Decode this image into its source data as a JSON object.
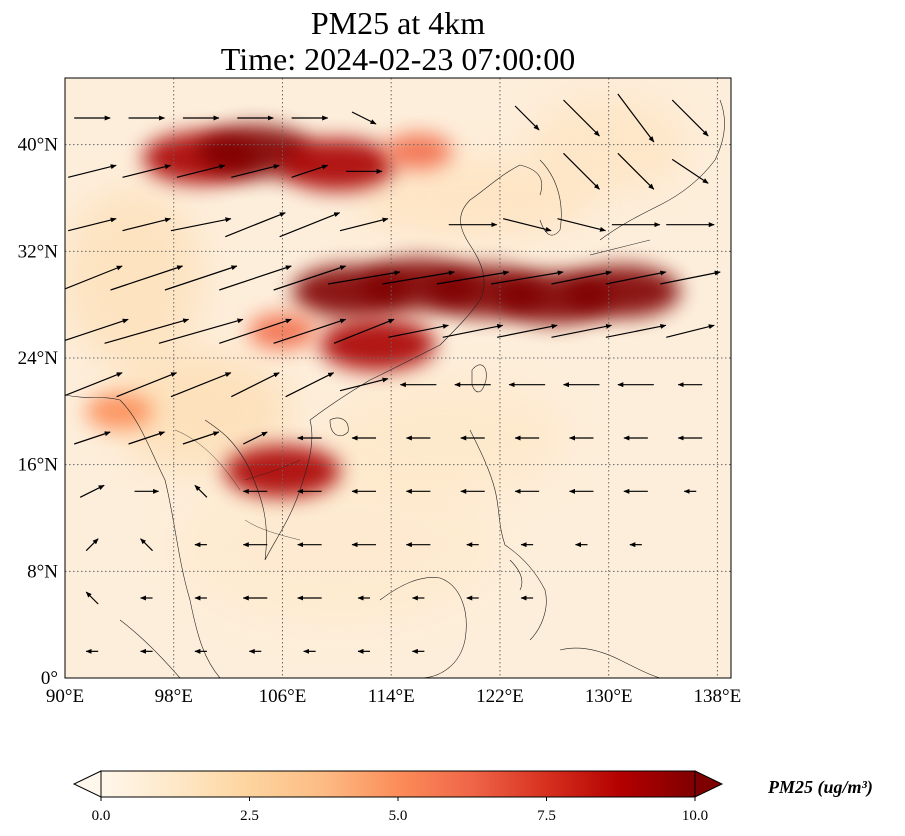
{
  "chart_data": {
    "type": "heatmap",
    "title_line1": "PM25 at 4km",
    "title_line2": "Time: 2024-02-23 07:00:00",
    "variable": "PM25",
    "units_label": "PM25 (ug/m³)",
    "x_range": [
      90,
      139
    ],
    "y_range": [
      0,
      45
    ],
    "x_ticks": [
      {
        "value": 90,
        "label": "90°E"
      },
      {
        "value": 98,
        "label": "98°E"
      },
      {
        "value": 106,
        "label": "106°E"
      },
      {
        "value": 114,
        "label": "114°E"
      },
      {
        "value": 122,
        "label": "122°E"
      },
      {
        "value": 130,
        "label": "130°E"
      },
      {
        "value": 138,
        "label": "138°E"
      }
    ],
    "y_ticks": [
      {
        "value": 0,
        "label": "0°"
      },
      {
        "value": 8,
        "label": "8°N"
      },
      {
        "value": 16,
        "label": "16°N"
      },
      {
        "value": 24,
        "label": "24°N"
      },
      {
        "value": 32,
        "label": "32°N"
      },
      {
        "value": 40,
        "label": "40°N"
      }
    ],
    "colorbar": {
      "min": 0,
      "max": 10,
      "ticks": [
        {
          "value": 0,
          "label": "0.0"
        },
        {
          "value": 2.5,
          "label": "2.5"
        },
        {
          "value": 5,
          "label": "5.0"
        },
        {
          "value": 7.5,
          "label": "7.5"
        },
        {
          "value": 10,
          "label": "10.0"
        }
      ],
      "colormap": "OrRd",
      "stops": [
        "#fff7ec",
        "#fee8c8",
        "#fdd49e",
        "#fdbb84",
        "#fc8d59",
        "#ef6548",
        "#d7301f",
        "#b30000",
        "#7f0000"
      ]
    },
    "plumes": [
      {
        "lon": 100,
        "lat": 39.0,
        "value": 9
      },
      {
        "lon": 104,
        "lat": 39.5,
        "value": 10
      },
      {
        "lon": 110,
        "lat": 38.5,
        "value": 9
      },
      {
        "lon": 116,
        "lat": 39.5,
        "value": 6
      },
      {
        "lon": 111,
        "lat": 29.0,
        "value": 10
      },
      {
        "lon": 116,
        "lat": 29.5,
        "value": 10
      },
      {
        "lon": 121,
        "lat": 29.0,
        "value": 10
      },
      {
        "lon": 126,
        "lat": 28.5,
        "value": 10
      },
      {
        "lon": 131,
        "lat": 29.0,
        "value": 10
      },
      {
        "lon": 113,
        "lat": 25.0,
        "value": 9
      },
      {
        "lon": 106,
        "lat": 26.0,
        "value": 6
      },
      {
        "lon": 94,
        "lat": 20.0,
        "value": 5
      },
      {
        "lon": 106,
        "lat": 15.5,
        "value": 9
      }
    ],
    "wind_vectors": [
      {
        "lon": 92,
        "lat": 42,
        "u": 3,
        "v": 0
      },
      {
        "lon": 96,
        "lat": 42,
        "u": 3,
        "v": 0
      },
      {
        "lon": 100,
        "lat": 42,
        "u": 3,
        "v": 0
      },
      {
        "lon": 104,
        "lat": 42,
        "u": 3,
        "v": 0
      },
      {
        "lon": 108,
        "lat": 42,
        "u": 3,
        "v": 0
      },
      {
        "lon": 112,
        "lat": 42,
        "u": 2,
        "v": -1
      },
      {
        "lon": 124,
        "lat": 42,
        "u": 2,
        "v": -2
      },
      {
        "lon": 128,
        "lat": 42,
        "u": 3,
        "v": -3
      },
      {
        "lon": 132,
        "lat": 42,
        "u": 3,
        "v": -4
      },
      {
        "lon": 136,
        "lat": 42,
        "u": 3,
        "v": -3
      },
      {
        "lon": 92,
        "lat": 38,
        "u": 4,
        "v": 1
      },
      {
        "lon": 96,
        "lat": 38,
        "u": 4,
        "v": 1
      },
      {
        "lon": 100,
        "lat": 38,
        "u": 4,
        "v": 1
      },
      {
        "lon": 104,
        "lat": 38,
        "u": 4,
        "v": 1
      },
      {
        "lon": 108,
        "lat": 38,
        "u": 3,
        "v": 1
      },
      {
        "lon": 112,
        "lat": 38,
        "u": 3,
        "v": 0
      },
      {
        "lon": 128,
        "lat": 38,
        "u": 3,
        "v": -3
      },
      {
        "lon": 132,
        "lat": 38,
        "u": 3,
        "v": -3
      },
      {
        "lon": 136,
        "lat": 38,
        "u": 3,
        "v": -2
      },
      {
        "lon": 92,
        "lat": 34,
        "u": 4,
        "v": 1
      },
      {
        "lon": 96,
        "lat": 34,
        "u": 4,
        "v": 1
      },
      {
        "lon": 100,
        "lat": 34,
        "u": 5,
        "v": 1
      },
      {
        "lon": 104,
        "lat": 34,
        "u": 5,
        "v": 2
      },
      {
        "lon": 108,
        "lat": 34,
        "u": 5,
        "v": 2
      },
      {
        "lon": 112,
        "lat": 34,
        "u": 4,
        "v": 1
      },
      {
        "lon": 120,
        "lat": 34,
        "u": 4,
        "v": 0
      },
      {
        "lon": 124,
        "lat": 34,
        "u": 4,
        "v": -1
      },
      {
        "lon": 128,
        "lat": 34,
        "u": 4,
        "v": -1
      },
      {
        "lon": 132,
        "lat": 34,
        "u": 4,
        "v": 0
      },
      {
        "lon": 136,
        "lat": 34,
        "u": 4,
        "v": 0
      },
      {
        "lon": 92,
        "lat": 30,
        "u": 5,
        "v": 2
      },
      {
        "lon": 96,
        "lat": 30,
        "u": 6,
        "v": 2
      },
      {
        "lon": 100,
        "lat": 30,
        "u": 6,
        "v": 2
      },
      {
        "lon": 104,
        "lat": 30,
        "u": 6,
        "v": 2
      },
      {
        "lon": 108,
        "lat": 30,
        "u": 6,
        "v": 2
      },
      {
        "lon": 112,
        "lat": 30,
        "u": 6,
        "v": 1
      },
      {
        "lon": 116,
        "lat": 30,
        "u": 6,
        "v": 1
      },
      {
        "lon": 120,
        "lat": 30,
        "u": 6,
        "v": 1
      },
      {
        "lon": 124,
        "lat": 30,
        "u": 6,
        "v": 1
      },
      {
        "lon": 128,
        "lat": 30,
        "u": 5,
        "v": 1
      },
      {
        "lon": 132,
        "lat": 30,
        "u": 5,
        "v": 1
      },
      {
        "lon": 136,
        "lat": 30,
        "u": 5,
        "v": 1
      },
      {
        "lon": 92,
        "lat": 26,
        "u": 6,
        "v": 2
      },
      {
        "lon": 96,
        "lat": 26,
        "u": 7,
        "v": 2
      },
      {
        "lon": 100,
        "lat": 26,
        "u": 7,
        "v": 2
      },
      {
        "lon": 104,
        "lat": 26,
        "u": 6,
        "v": 2
      },
      {
        "lon": 108,
        "lat": 26,
        "u": 6,
        "v": 2
      },
      {
        "lon": 112,
        "lat": 26,
        "u": 5,
        "v": 2
      },
      {
        "lon": 116,
        "lat": 26,
        "u": 5,
        "v": 1
      },
      {
        "lon": 120,
        "lat": 26,
        "u": 5,
        "v": 1
      },
      {
        "lon": 124,
        "lat": 26,
        "u": 5,
        "v": 1
      },
      {
        "lon": 128,
        "lat": 26,
        "u": 5,
        "v": 1
      },
      {
        "lon": 132,
        "lat": 26,
        "u": 5,
        "v": 1
      },
      {
        "lon": 136,
        "lat": 26,
        "u": 4,
        "v": 1
      },
      {
        "lon": 92,
        "lat": 22,
        "u": 5,
        "v": 2
      },
      {
        "lon": 96,
        "lat": 22,
        "u": 5,
        "v": 2
      },
      {
        "lon": 100,
        "lat": 22,
        "u": 5,
        "v": 2
      },
      {
        "lon": 104,
        "lat": 22,
        "u": 4,
        "v": 2
      },
      {
        "lon": 108,
        "lat": 22,
        "u": 4,
        "v": 2
      },
      {
        "lon": 112,
        "lat": 22,
        "u": 4,
        "v": 1
      },
      {
        "lon": 116,
        "lat": 22,
        "u": -3,
        "v": 0
      },
      {
        "lon": 120,
        "lat": 22,
        "u": -3,
        "v": 0
      },
      {
        "lon": 124,
        "lat": 22,
        "u": -3,
        "v": 0
      },
      {
        "lon": 128,
        "lat": 22,
        "u": -3,
        "v": 0
      },
      {
        "lon": 132,
        "lat": 22,
        "u": -3,
        "v": 0
      },
      {
        "lon": 136,
        "lat": 22,
        "u": -2,
        "v": 0
      },
      {
        "lon": 92,
        "lat": 18,
        "u": 3,
        "v": 1
      },
      {
        "lon": 96,
        "lat": 18,
        "u": 3,
        "v": 1
      },
      {
        "lon": 100,
        "lat": 18,
        "u": 3,
        "v": 1
      },
      {
        "lon": 104,
        "lat": 18,
        "u": 2,
        "v": 1
      },
      {
        "lon": 108,
        "lat": 18,
        "u": -2,
        "v": 0
      },
      {
        "lon": 112,
        "lat": 18,
        "u": -2,
        "v": 0
      },
      {
        "lon": 116,
        "lat": 18,
        "u": -2,
        "v": 0
      },
      {
        "lon": 120,
        "lat": 18,
        "u": -2,
        "v": 0
      },
      {
        "lon": 124,
        "lat": 18,
        "u": -2,
        "v": 0
      },
      {
        "lon": 128,
        "lat": 18,
        "u": -2,
        "v": 0
      },
      {
        "lon": 132,
        "lat": 18,
        "u": -2,
        "v": 0
      },
      {
        "lon": 136,
        "lat": 18,
        "u": -2,
        "v": 0
      },
      {
        "lon": 92,
        "lat": 14,
        "u": 2,
        "v": 1
      },
      {
        "lon": 96,
        "lat": 14,
        "u": 2,
        "v": 0
      },
      {
        "lon": 100,
        "lat": 14,
        "u": -1,
        "v": 1
      },
      {
        "lon": 104,
        "lat": 14,
        "u": -2,
        "v": 0
      },
      {
        "lon": 108,
        "lat": 14,
        "u": -2,
        "v": 0
      },
      {
        "lon": 112,
        "lat": 14,
        "u": -2,
        "v": 0
      },
      {
        "lon": 116,
        "lat": 14,
        "u": -2,
        "v": 0
      },
      {
        "lon": 120,
        "lat": 14,
        "u": -2,
        "v": 0
      },
      {
        "lon": 124,
        "lat": 14,
        "u": -2,
        "v": 0
      },
      {
        "lon": 128,
        "lat": 14,
        "u": -2,
        "v": 0
      },
      {
        "lon": 132,
        "lat": 14,
        "u": -2,
        "v": 0
      },
      {
        "lon": 136,
        "lat": 14,
        "u": -1,
        "v": 0
      },
      {
        "lon": 92,
        "lat": 10,
        "u": 1,
        "v": 1
      },
      {
        "lon": 96,
        "lat": 10,
        "u": -1,
        "v": 1
      },
      {
        "lon": 100,
        "lat": 10,
        "u": -1,
        "v": 0
      },
      {
        "lon": 104,
        "lat": 10,
        "u": -2,
        "v": 0
      },
      {
        "lon": 108,
        "lat": 10,
        "u": -2,
        "v": 0
      },
      {
        "lon": 112,
        "lat": 10,
        "u": -2,
        "v": 0
      },
      {
        "lon": 116,
        "lat": 10,
        "u": -2,
        "v": 0
      },
      {
        "lon": 120,
        "lat": 10,
        "u": -1,
        "v": 0
      },
      {
        "lon": 124,
        "lat": 10,
        "u": -1,
        "v": 0
      },
      {
        "lon": 128,
        "lat": 10,
        "u": -1,
        "v": 0
      },
      {
        "lon": 132,
        "lat": 10,
        "u": -1,
        "v": 0
      },
      {
        "lon": 92,
        "lat": 6,
        "u": -1,
        "v": 1
      },
      {
        "lon": 96,
        "lat": 6,
        "u": -1,
        "v": 0
      },
      {
        "lon": 100,
        "lat": 6,
        "u": -1,
        "v": 0
      },
      {
        "lon": 104,
        "lat": 6,
        "u": -2,
        "v": 0
      },
      {
        "lon": 108,
        "lat": 6,
        "u": -2,
        "v": 0
      },
      {
        "lon": 112,
        "lat": 6,
        "u": -1,
        "v": 0
      },
      {
        "lon": 116,
        "lat": 6,
        "u": -1,
        "v": 0
      },
      {
        "lon": 120,
        "lat": 6,
        "u": -1,
        "v": 0
      },
      {
        "lon": 124,
        "lat": 6,
        "u": -1,
        "v": 0
      },
      {
        "lon": 92,
        "lat": 2,
        "u": -1,
        "v": 0
      },
      {
        "lon": 96,
        "lat": 2,
        "u": -1,
        "v": 0
      },
      {
        "lon": 100,
        "lat": 2,
        "u": -1,
        "v": 0
      },
      {
        "lon": 104,
        "lat": 2,
        "u": -1,
        "v": 0
      },
      {
        "lon": 108,
        "lat": 2,
        "u": -1,
        "v": 0
      },
      {
        "lon": 112,
        "lat": 2,
        "u": -1,
        "v": 0
      },
      {
        "lon": 116,
        "lat": 2,
        "u": -1,
        "v": 0
      }
    ]
  }
}
